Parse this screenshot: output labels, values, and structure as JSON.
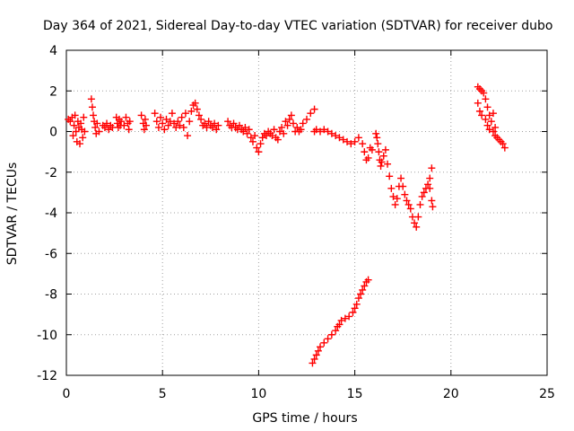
{
  "chart_data": {
    "type": "scatter",
    "title": "Day 364 of 2021, Sidereal Day-to-day VTEC variation (SDTVAR) for receiver dubo",
    "xlabel": "GPS time / hours",
    "ylabel": "SDTVAR / TECUs",
    "xlim": [
      0,
      25
    ],
    "ylim": [
      -12,
      4
    ],
    "xticks": [
      0,
      5,
      10,
      15,
      20,
      25
    ],
    "yticks": [
      4,
      2,
      0,
      -2,
      -4,
      -6,
      -8,
      -10,
      -12
    ],
    "grid": true,
    "marker": "+",
    "color": "#ff0000",
    "series": [
      {
        "name": "SDTVAR",
        "points": [
          [
            0.1,
            0.6
          ],
          [
            0.2,
            0.5
          ],
          [
            0.3,
            0.7
          ],
          [
            0.35,
            -0.2
          ],
          [
            0.4,
            0.3
          ],
          [
            0.45,
            0.8
          ],
          [
            0.5,
            0.0
          ],
          [
            0.55,
            -0.5
          ],
          [
            0.6,
            0.5
          ],
          [
            0.65,
            0.2
          ],
          [
            0.7,
            -0.6
          ],
          [
            0.75,
            0.4
          ],
          [
            0.8,
            0.1
          ],
          [
            0.85,
            -0.3
          ],
          [
            0.9,
            0.7
          ],
          [
            0.95,
            0.0
          ],
          [
            1.3,
            1.6
          ],
          [
            1.35,
            1.2
          ],
          [
            1.4,
            0.8
          ],
          [
            1.45,
            0.5
          ],
          [
            1.5,
            0.2
          ],
          [
            1.55,
            -0.1
          ],
          [
            1.6,
            0.4
          ],
          [
            1.7,
            0.0
          ],
          [
            1.9,
            0.3
          ],
          [
            2.0,
            0.2
          ],
          [
            2.1,
            0.4
          ],
          [
            2.2,
            0.1
          ],
          [
            2.3,
            0.3
          ],
          [
            2.4,
            0.2
          ],
          [
            2.6,
            0.7
          ],
          [
            2.65,
            0.4
          ],
          [
            2.7,
            0.2
          ],
          [
            2.75,
            0.6
          ],
          [
            2.8,
            0.3
          ],
          [
            2.85,
            0.5
          ],
          [
            3.0,
            0.3
          ],
          [
            3.1,
            0.7
          ],
          [
            3.2,
            0.4
          ],
          [
            3.25,
            0.1
          ],
          [
            3.3,
            0.5
          ],
          [
            3.9,
            0.8
          ],
          [
            4.0,
            0.4
          ],
          [
            4.05,
            0.1
          ],
          [
            4.1,
            0.6
          ],
          [
            4.15,
            0.3
          ],
          [
            4.6,
            0.9
          ],
          [
            4.7,
            0.5
          ],
          [
            4.8,
            0.2
          ],
          [
            4.9,
            0.7
          ],
          [
            5.0,
            0.4
          ],
          [
            5.1,
            0.1
          ],
          [
            5.2,
            0.6
          ],
          [
            5.3,
            0.3
          ],
          [
            5.4,
            0.5
          ],
          [
            5.5,
            0.9
          ],
          [
            5.6,
            0.4
          ],
          [
            5.7,
            0.2
          ],
          [
            5.8,
            0.5
          ],
          [
            5.9,
            0.3
          ],
          [
            6.0,
            0.7
          ],
          [
            6.1,
            0.2
          ],
          [
            6.2,
            0.9
          ],
          [
            6.3,
            -0.2
          ],
          [
            6.4,
            0.5
          ],
          [
            6.5,
            1.0
          ],
          [
            6.6,
            1.3
          ],
          [
            6.7,
            1.4
          ],
          [
            6.8,
            1.1
          ],
          [
            6.9,
            0.8
          ],
          [
            7.0,
            0.6
          ],
          [
            7.1,
            0.3
          ],
          [
            7.2,
            0.4
          ],
          [
            7.3,
            0.2
          ],
          [
            7.4,
            0.5
          ],
          [
            7.5,
            0.3
          ],
          [
            7.6,
            0.2
          ],
          [
            7.7,
            0.4
          ],
          [
            7.8,
            0.1
          ],
          [
            7.9,
            0.3
          ],
          [
            8.4,
            0.5
          ],
          [
            8.5,
            0.3
          ],
          [
            8.6,
            0.2
          ],
          [
            8.7,
            0.4
          ],
          [
            8.8,
            0.2
          ],
          [
            8.9,
            0.1
          ],
          [
            9.0,
            0.3
          ],
          [
            9.1,
            0.1
          ],
          [
            9.2,
            0.0
          ],
          [
            9.3,
            0.2
          ],
          [
            9.4,
            -0.1
          ],
          [
            9.5,
            0.1
          ],
          [
            9.6,
            -0.3
          ],
          [
            9.7,
            -0.5
          ],
          [
            9.8,
            -0.2
          ],
          [
            9.9,
            -0.8
          ],
          [
            10.0,
            -1.0
          ],
          [
            10.1,
            -0.6
          ],
          [
            10.2,
            -0.3
          ],
          [
            10.3,
            -0.1
          ],
          [
            10.4,
            -0.2
          ],
          [
            10.5,
            0.0
          ],
          [
            10.6,
            -0.1
          ],
          [
            10.7,
            -0.2
          ],
          [
            10.8,
            0.1
          ],
          [
            10.9,
            -0.3
          ],
          [
            11.0,
            -0.4
          ],
          [
            11.1,
            0.0
          ],
          [
            11.2,
            0.2
          ],
          [
            11.3,
            -0.1
          ],
          [
            11.4,
            0.5
          ],
          [
            11.5,
            0.3
          ],
          [
            11.6,
            0.6
          ],
          [
            11.7,
            0.8
          ],
          [
            11.8,
            0.4
          ],
          [
            11.9,
            0.0
          ],
          [
            12.0,
            0.2
          ],
          [
            12.1,
            0.0
          ],
          [
            12.2,
            0.1
          ],
          [
            12.3,
            0.4
          ],
          [
            12.5,
            0.6
          ],
          [
            12.7,
            0.9
          ],
          [
            12.9,
            1.1
          ],
          [
            12.9,
            0.0
          ],
          [
            13.0,
            0.1
          ],
          [
            13.2,
            0.0
          ],
          [
            13.4,
            0.1
          ],
          [
            13.6,
            0.0
          ],
          [
            13.8,
            -0.1
          ],
          [
            14.0,
            -0.2
          ],
          [
            14.2,
            -0.3
          ],
          [
            14.4,
            -0.4
          ],
          [
            14.6,
            -0.5
          ],
          [
            14.8,
            -0.6
          ],
          [
            15.0,
            -0.5
          ],
          [
            15.2,
            -0.3
          ],
          [
            15.4,
            -0.6
          ],
          [
            15.5,
            -1.0
          ],
          [
            15.6,
            -1.4
          ],
          [
            15.7,
            -1.3
          ],
          [
            15.8,
            -0.8
          ],
          [
            15.9,
            -0.9
          ],
          [
            16.1,
            -0.1
          ],
          [
            16.15,
            -0.3
          ],
          [
            16.2,
            -0.6
          ],
          [
            16.25,
            -1.0
          ],
          [
            16.3,
            -1.4
          ],
          [
            16.35,
            -1.7
          ],
          [
            16.4,
            -1.5
          ],
          [
            16.5,
            -1.2
          ],
          [
            16.6,
            -0.9
          ],
          [
            16.7,
            -1.6
          ],
          [
            16.8,
            -2.2
          ],
          [
            16.9,
            -2.8
          ],
          [
            17.0,
            -3.2
          ],
          [
            17.1,
            -3.6
          ],
          [
            17.2,
            -3.3
          ],
          [
            17.3,
            -2.7
          ],
          [
            17.4,
            -2.3
          ],
          [
            17.5,
            -2.7
          ],
          [
            17.6,
            -3.1
          ],
          [
            17.7,
            -3.4
          ],
          [
            17.8,
            -3.6
          ],
          [
            17.9,
            -3.8
          ],
          [
            18.0,
            -4.2
          ],
          [
            18.1,
            -4.5
          ],
          [
            18.2,
            -4.7
          ],
          [
            18.3,
            -4.2
          ],
          [
            18.4,
            -3.6
          ],
          [
            18.5,
            -3.2
          ],
          [
            18.6,
            -3.0
          ],
          [
            18.7,
            -2.8
          ],
          [
            18.8,
            -2.6
          ],
          [
            18.9,
            -2.8
          ],
          [
            19.0,
            -3.4
          ],
          [
            19.05,
            -3.7
          ],
          [
            19.0,
            -1.8
          ],
          [
            18.9,
            -2.3
          ],
          [
            12.8,
            -11.4
          ],
          [
            12.9,
            -11.2
          ],
          [
            13.0,
            -11.0
          ],
          [
            13.1,
            -10.8
          ],
          [
            13.2,
            -10.6
          ],
          [
            13.4,
            -10.4
          ],
          [
            13.6,
            -10.2
          ],
          [
            13.8,
            -10.0
          ],
          [
            14.0,
            -9.8
          ],
          [
            14.1,
            -9.6
          ],
          [
            14.2,
            -9.5
          ],
          [
            14.3,
            -9.3
          ],
          [
            14.5,
            -9.2
          ],
          [
            14.7,
            -9.1
          ],
          [
            14.9,
            -8.9
          ],
          [
            15.0,
            -8.7
          ],
          [
            15.1,
            -8.5
          ],
          [
            15.2,
            -8.2
          ],
          [
            15.3,
            -8.0
          ],
          [
            15.4,
            -7.8
          ],
          [
            15.5,
            -7.6
          ],
          [
            15.6,
            -7.4
          ],
          [
            15.7,
            -7.3
          ],
          [
            21.4,
            2.2
          ],
          [
            21.5,
            2.1
          ],
          [
            21.6,
            2.0
          ],
          [
            21.4,
            1.4
          ],
          [
            21.5,
            1.0
          ],
          [
            21.6,
            0.8
          ],
          [
            21.7,
            1.9
          ],
          [
            21.8,
            1.6
          ],
          [
            21.9,
            1.2
          ],
          [
            22.0,
            0.8
          ],
          [
            21.8,
            0.6
          ],
          [
            21.9,
            0.3
          ],
          [
            22.0,
            0.1
          ],
          [
            22.1,
            0.5
          ],
          [
            22.2,
            0.0
          ],
          [
            22.3,
            -0.2
          ],
          [
            22.4,
            -0.3
          ],
          [
            22.5,
            -0.4
          ],
          [
            22.6,
            -0.5
          ],
          [
            22.7,
            -0.6
          ],
          [
            22.8,
            -0.8
          ],
          [
            22.3,
            0.2
          ],
          [
            22.2,
            0.9
          ]
        ]
      }
    ]
  }
}
